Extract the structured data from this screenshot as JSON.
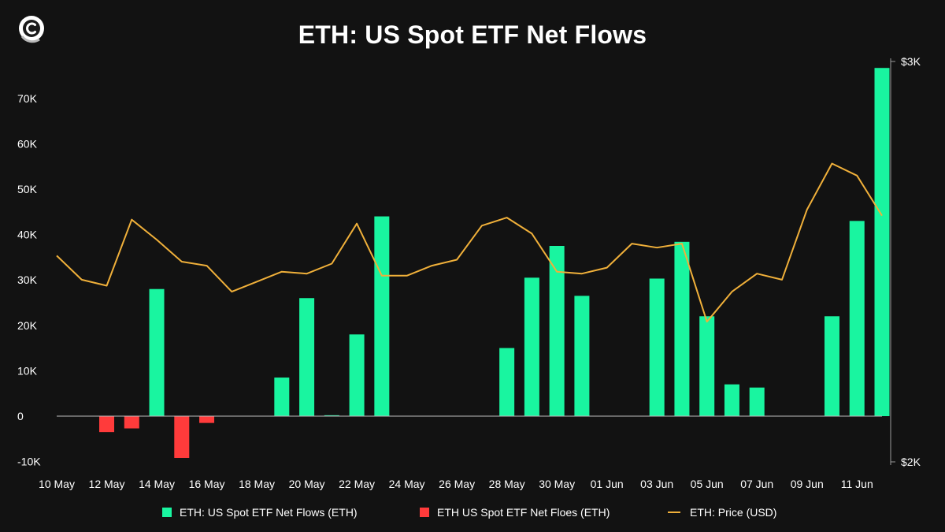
{
  "colors": {
    "background": "#121212",
    "inflow": "#19f5a0",
    "outflow": "#ff3b3b",
    "price": "#f0b03a",
    "axis": "#9a9a9a",
    "text": "#ffffff"
  },
  "logo": {
    "icon": "logo-c-icon"
  },
  "chart_data": {
    "type": "bar",
    "title": "ETH: US Spot ETF Net Flows",
    "xlabel": "",
    "ylabel": "",
    "x_tick_labels": [
      "10 May",
      "12 May",
      "14 May",
      "16 May",
      "18 May",
      "20 May",
      "22 May",
      "24 May",
      "26 May",
      "28 May",
      "30 May",
      "01 Jun",
      "03 Jun",
      "05 Jun",
      "07 Jun",
      "09 Jun",
      "11 Jun"
    ],
    "y_ticks": [
      -10000,
      0,
      10000,
      20000,
      30000,
      40000,
      50000,
      60000,
      70000
    ],
    "y_tick_labels": [
      "-10K",
      "0",
      "10K",
      "20K",
      "30K",
      "40K",
      "50K",
      "60K",
      "70K"
    ],
    "ylim": [
      -10000,
      78000
    ],
    "y2_ticks": [
      2000,
      3000
    ],
    "y2_tick_labels": [
      "$2K",
      "$3K"
    ],
    "y2lim": [
      2000,
      3000
    ],
    "grid": false,
    "legend_position": "bottom",
    "x": [
      "10 May",
      "11 May",
      "12 May",
      "13 May",
      "14 May",
      "15 May",
      "16 May",
      "17 May",
      "18 May",
      "19 May",
      "20 May",
      "21 May",
      "22 May",
      "23 May",
      "24 May",
      "25 May",
      "26 May",
      "27 May",
      "28 May",
      "29 May",
      "30 May",
      "31 May",
      "01 Jun",
      "02 Jun",
      "03 Jun",
      "04 Jun",
      "05 Jun",
      "06 Jun",
      "07 Jun",
      "08 Jun",
      "09 Jun",
      "10 Jun",
      "11 Jun",
      "12 Jun"
    ],
    "series": [
      {
        "name": "ETH: US Spot ETF Net Flows (ETH)",
        "type": "bar",
        "axis": "left",
        "values": [
          0,
          0,
          0,
          0,
          28000,
          0,
          0,
          0,
          0,
          8500,
          26000,
          200,
          18000,
          44000,
          0,
          0,
          0,
          0,
          15000,
          30500,
          37500,
          26500,
          0,
          0,
          30300,
          38400,
          22000,
          7000,
          6300,
          0,
          0,
          22000,
          43000,
          76700
        ]
      },
      {
        "name": "ETH US Spot ETF Net Floes (ETH)",
        "type": "bar",
        "axis": "left",
        "values": [
          0,
          0,
          -3500,
          -2700,
          0,
          -9200,
          -1500,
          0,
          0,
          0,
          0,
          0,
          0,
          0,
          0,
          0,
          0,
          0,
          0,
          0,
          0,
          0,
          0,
          0,
          0,
          0,
          0,
          0,
          0,
          0,
          0,
          0,
          0,
          0
        ]
      },
      {
        "name": "ETH: Price (USD)",
        "type": "line",
        "axis": "right",
        "values": [
          2515,
          2455,
          2440,
          2605,
          2555,
          2500,
          2490,
          2425,
          2450,
          2475,
          2470,
          2495,
          2595,
          2465,
          2465,
          2490,
          2505,
          2590,
          2610,
          2570,
          2475,
          2470,
          2485,
          2545,
          2535,
          2545,
          2350,
          2425,
          2470,
          2455,
          2630,
          2745,
          2715,
          2615
        ]
      }
    ]
  }
}
